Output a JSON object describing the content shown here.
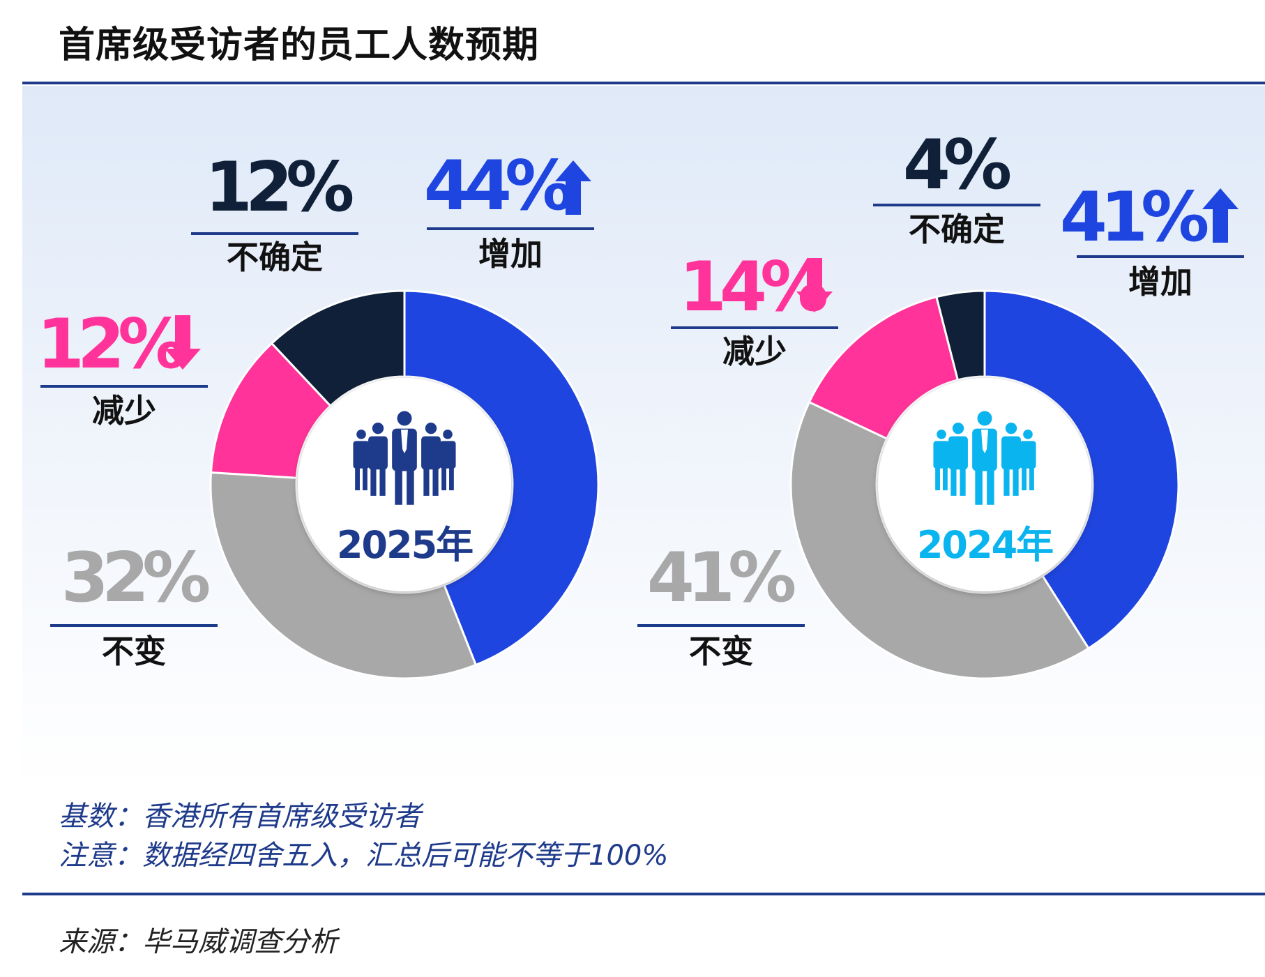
{
  "title": "首席级受访者的员工人数预期",
  "chart_data": [
    {
      "type": "pie",
      "center_label": "2025年",
      "center_color": "#1e3a8a",
      "categories": [
        "增加",
        "不变",
        "减少",
        "不确定"
      ],
      "values": [
        44,
        32,
        12,
        12
      ],
      "value_labels": [
        "44%",
        "32%",
        "12%",
        "12%"
      ],
      "colors": [
        "#1f45e0",
        "#a8a8a8",
        "#ff3399",
        "#0f2038"
      ],
      "arrows": [
        "up",
        "",
        "down",
        ""
      ]
    },
    {
      "type": "pie",
      "center_label": "2024年",
      "center_color": "#0ab4ef",
      "categories": [
        "增加",
        "不变",
        "减少",
        "不确定"
      ],
      "values": [
        41,
        41,
        14,
        4
      ],
      "value_labels": [
        "41%",
        "41%",
        "14%",
        "4%"
      ],
      "colors": [
        "#1f45e0",
        "#a8a8a8",
        "#ff3399",
        "#0f2038"
      ],
      "arrows": [
        "up",
        "",
        "down",
        ""
      ]
    }
  ],
  "notes": {
    "base": "基数：香港所有首席级受访者",
    "note": "注意：数据经四舍五入，汇总后可能不等于100%"
  },
  "source": "来源：毕马威调查分析"
}
